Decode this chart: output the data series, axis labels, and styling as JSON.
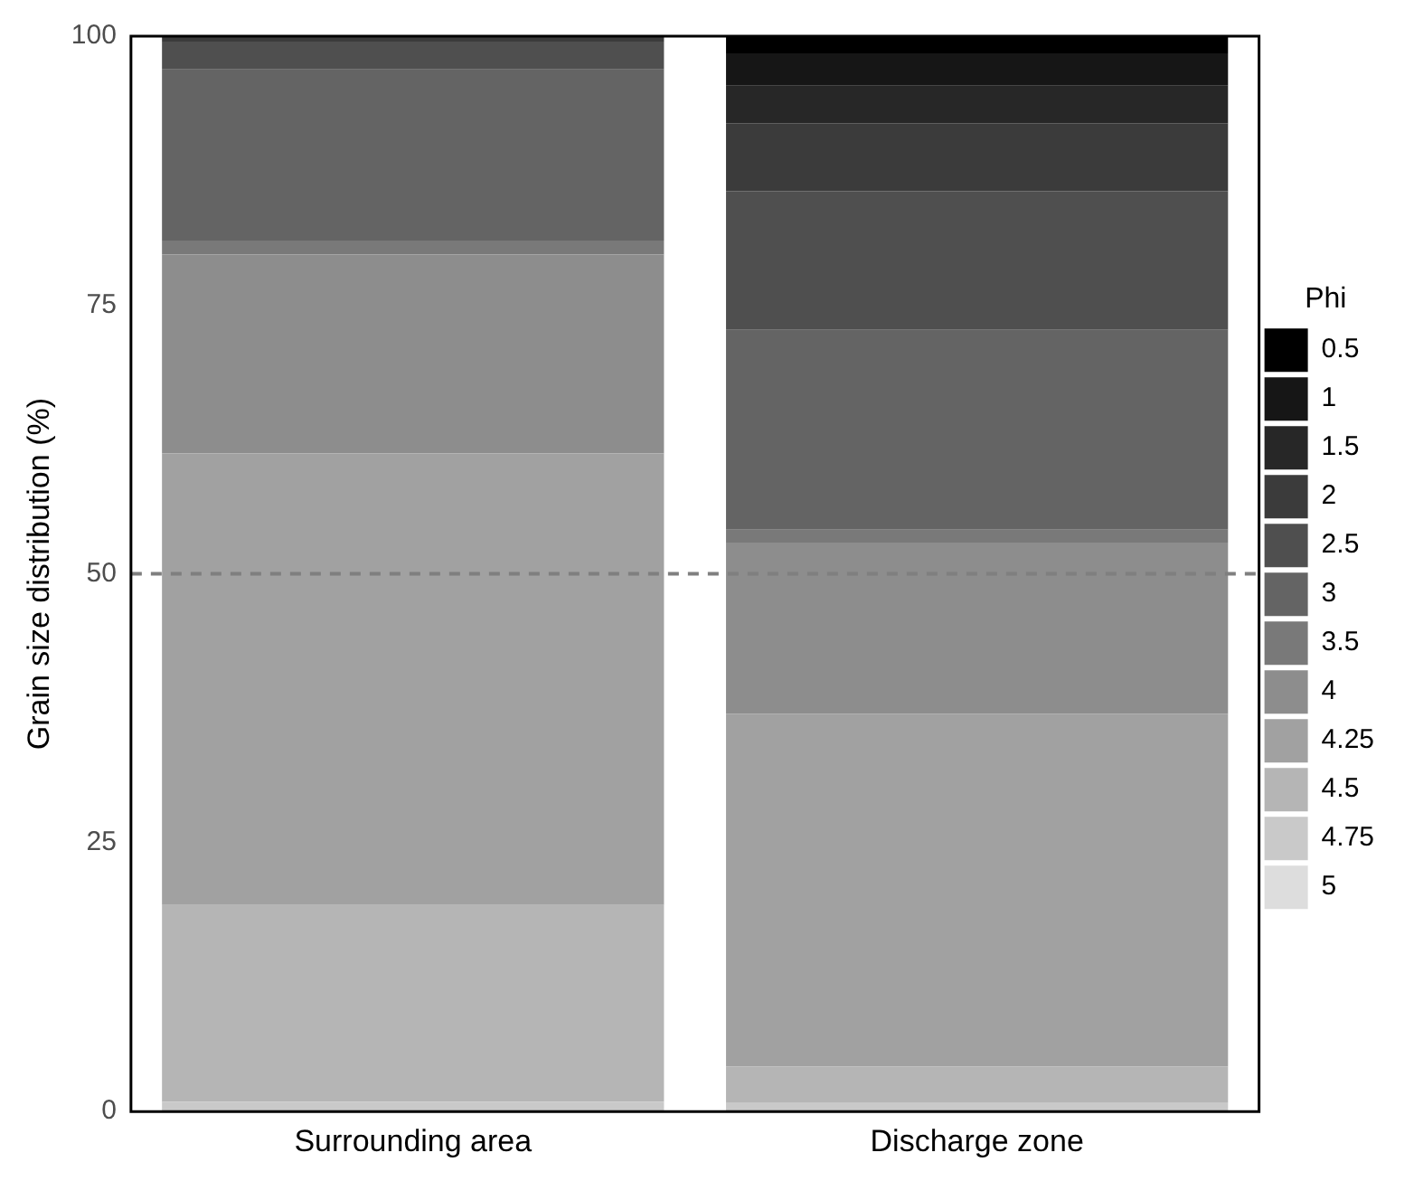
{
  "chart_data": {
    "type": "bar",
    "stacked": true,
    "ylabel": "Grain size distribution (%)",
    "legend_title": "Phi",
    "legend": "right",
    "grid": false,
    "categories": [
      "Surrounding area",
      "Discharge zone"
    ],
    "series": [
      {
        "name": "5",
        "color": "#dddddd",
        "values": [
          null,
          null
        ]
      },
      {
        "name": "4.75",
        "color": "#c9c9c9",
        "values": [
          0.9,
          0.8
        ]
      },
      {
        "name": "4.5",
        "color": "#b5b5b5",
        "values": [
          18.3,
          3.4
        ]
      },
      {
        "name": "4.25",
        "color": "#a1a1a1",
        "values": [
          42,
          32.8
        ]
      },
      {
        "name": "4",
        "color": "#8d8d8d",
        "values": [
          18.5,
          15.9
        ]
      },
      {
        "name": "3.5",
        "color": "#797979",
        "values": [
          1.3,
          1.2
        ]
      },
      {
        "name": "3",
        "color": "#646464",
        "values": [
          15.9,
          18.6
        ]
      },
      {
        "name": "2.5",
        "color": "#4f4f4f",
        "values": [
          2.6,
          12.9
        ]
      },
      {
        "name": "2",
        "color": "#3b3b3b",
        "values": [
          0.5,
          6.3
        ]
      },
      {
        "name": "1.5",
        "color": "#272727",
        "values": [
          null,
          3.5
        ]
      },
      {
        "name": "1",
        "color": "#161616",
        "values": [
          0,
          3.0
        ]
      },
      {
        "name": "0.5",
        "color": "#000000",
        "values": [
          0,
          1.6
        ]
      }
    ],
    "ylim": [
      0,
      100
    ],
    "yticks": [
      0,
      25,
      50,
      75,
      100
    ],
    "ref_lines": [
      {
        "axis": "y",
        "value": 50,
        "color": "#7f7f7f",
        "line_style": "dashed"
      }
    ]
  }
}
